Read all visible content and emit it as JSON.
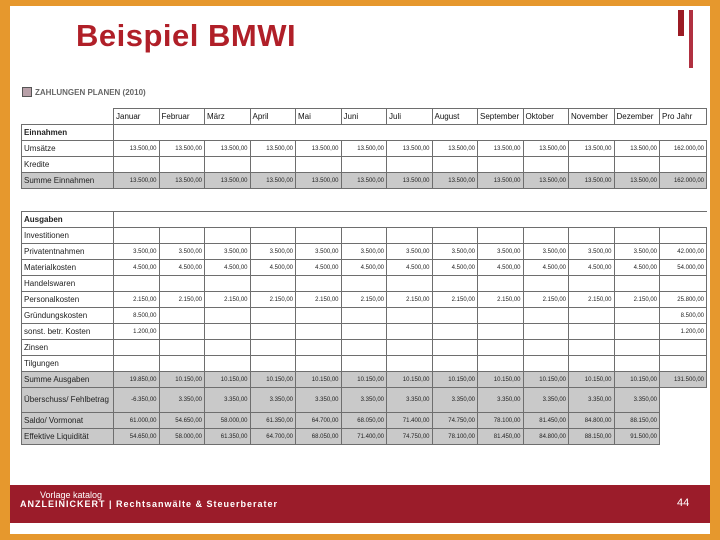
{
  "slide": {
    "title": "Beispiel BMWI",
    "section_label": "ZAHLUNGEN PLANEN (2010)",
    "footer_vorlage": "Vorlage katalog",
    "footer_brand": "ANZLEINICKERT | Rechtsanwälte & Steuerberater",
    "page_number": "44"
  },
  "table": {
    "months": [
      "Januar",
      "Februar",
      "März",
      "April",
      "Mai",
      "Juni",
      "Juli",
      "August",
      "September",
      "Oktober",
      "November",
      "Dezember",
      "Pro Jahr"
    ],
    "rows": [
      {
        "label": "Einnahmen",
        "style": "bold",
        "values": []
      },
      {
        "label": "Umsätze",
        "style": "",
        "values": [
          "13.500,00",
          "13.500,00",
          "13.500,00",
          "13.500,00",
          "13.500,00",
          "13.500,00",
          "13.500,00",
          "13.500,00",
          "13.500,00",
          "13.500,00",
          "13.500,00",
          "13.500,00",
          "162.000,00"
        ]
      },
      {
        "label": "Kredite",
        "style": "",
        "values": []
      },
      {
        "label": "Summe Einnahmen",
        "style": "gray",
        "values": [
          "13.500,00",
          "13.500,00",
          "13.500,00",
          "13.500,00",
          "13.500,00",
          "13.500,00",
          "13.500,00",
          "13.500,00",
          "13.500,00",
          "13.500,00",
          "13.500,00",
          "13.500,00",
          "162.000,00"
        ]
      },
      {
        "label": "",
        "style": "blank",
        "values": []
      },
      {
        "label": "Ausgaben",
        "style": "bold",
        "values": []
      },
      {
        "label": "Investitionen",
        "style": "",
        "values": []
      },
      {
        "label": "Privatentnahmen",
        "style": "",
        "values": [
          "3.500,00",
          "3.500,00",
          "3.500,00",
          "3.500,00",
          "3.500,00",
          "3.500,00",
          "3.500,00",
          "3.500,00",
          "3.500,00",
          "3.500,00",
          "3.500,00",
          "3.500,00",
          "42.000,00"
        ]
      },
      {
        "label": "Materialkosten",
        "style": "",
        "values": [
          "4.500,00",
          "4.500,00",
          "4.500,00",
          "4.500,00",
          "4.500,00",
          "4.500,00",
          "4.500,00",
          "4.500,00",
          "4.500,00",
          "4.500,00",
          "4.500,00",
          "4.500,00",
          "54.000,00"
        ]
      },
      {
        "label": "Handelswaren",
        "style": "",
        "values": []
      },
      {
        "label": "Personalkosten",
        "style": "",
        "values": [
          "2.150,00",
          "2.150,00",
          "2.150,00",
          "2.150,00",
          "2.150,00",
          "2.150,00",
          "2.150,00",
          "2.150,00",
          "2.150,00",
          "2.150,00",
          "2.150,00",
          "2.150,00",
          "25.800,00"
        ]
      },
      {
        "label": "Gründungskosten",
        "style": "",
        "values": [
          "8.500,00",
          "",
          "",
          "",
          "",
          "",
          "",
          "",
          "",
          "",
          "",
          "",
          "8.500,00"
        ]
      },
      {
        "label": "sonst. betr. Kosten",
        "style": "",
        "values": [
          "1.200,00",
          "",
          "",
          "",
          "",
          "",
          "",
          "",
          "",
          "",
          "",
          "",
          "1.200,00"
        ]
      },
      {
        "label": "Zinsen",
        "style": "",
        "values": []
      },
      {
        "label": "Tilgungen",
        "style": "",
        "values": []
      },
      {
        "label": "Summe Ausgaben",
        "style": "gray",
        "values": [
          "19.850,00",
          "10.150,00",
          "10.150,00",
          "10.150,00",
          "10.150,00",
          "10.150,00",
          "10.150,00",
          "10.150,00",
          "10.150,00",
          "10.150,00",
          "10.150,00",
          "10.150,00",
          "131.500,00"
        ]
      },
      {
        "label": "Überschuss/ Fehlbetrag",
        "style": "gray tall",
        "values": [
          "-6.350,00",
          "3.350,00",
          "3.350,00",
          "3.350,00",
          "3.350,00",
          "3.350,00",
          "3.350,00",
          "3.350,00",
          "3.350,00",
          "3.350,00",
          "3.350,00",
          "3.350,00",
          null
        ]
      },
      {
        "label": "Saldo/ Vormonat",
        "style": "gray",
        "values": [
          "61.000,00",
          "54.650,00",
          "58.000,00",
          "61.350,00",
          "64.700,00",
          "68.050,00",
          "71.400,00",
          "74.750,00",
          "78.100,00",
          "81.450,00",
          "84.800,00",
          "88.150,00",
          null
        ]
      },
      {
        "label": "Effektive Liquidität",
        "style": "gray",
        "values": [
          "54.650,00",
          "58.000,00",
          "61.350,00",
          "64.700,00",
          "68.050,00",
          "71.400,00",
          "74.750,00",
          "78.100,00",
          "81.450,00",
          "84.800,00",
          "88.150,00",
          "91.500,00",
          null
        ]
      }
    ]
  }
}
